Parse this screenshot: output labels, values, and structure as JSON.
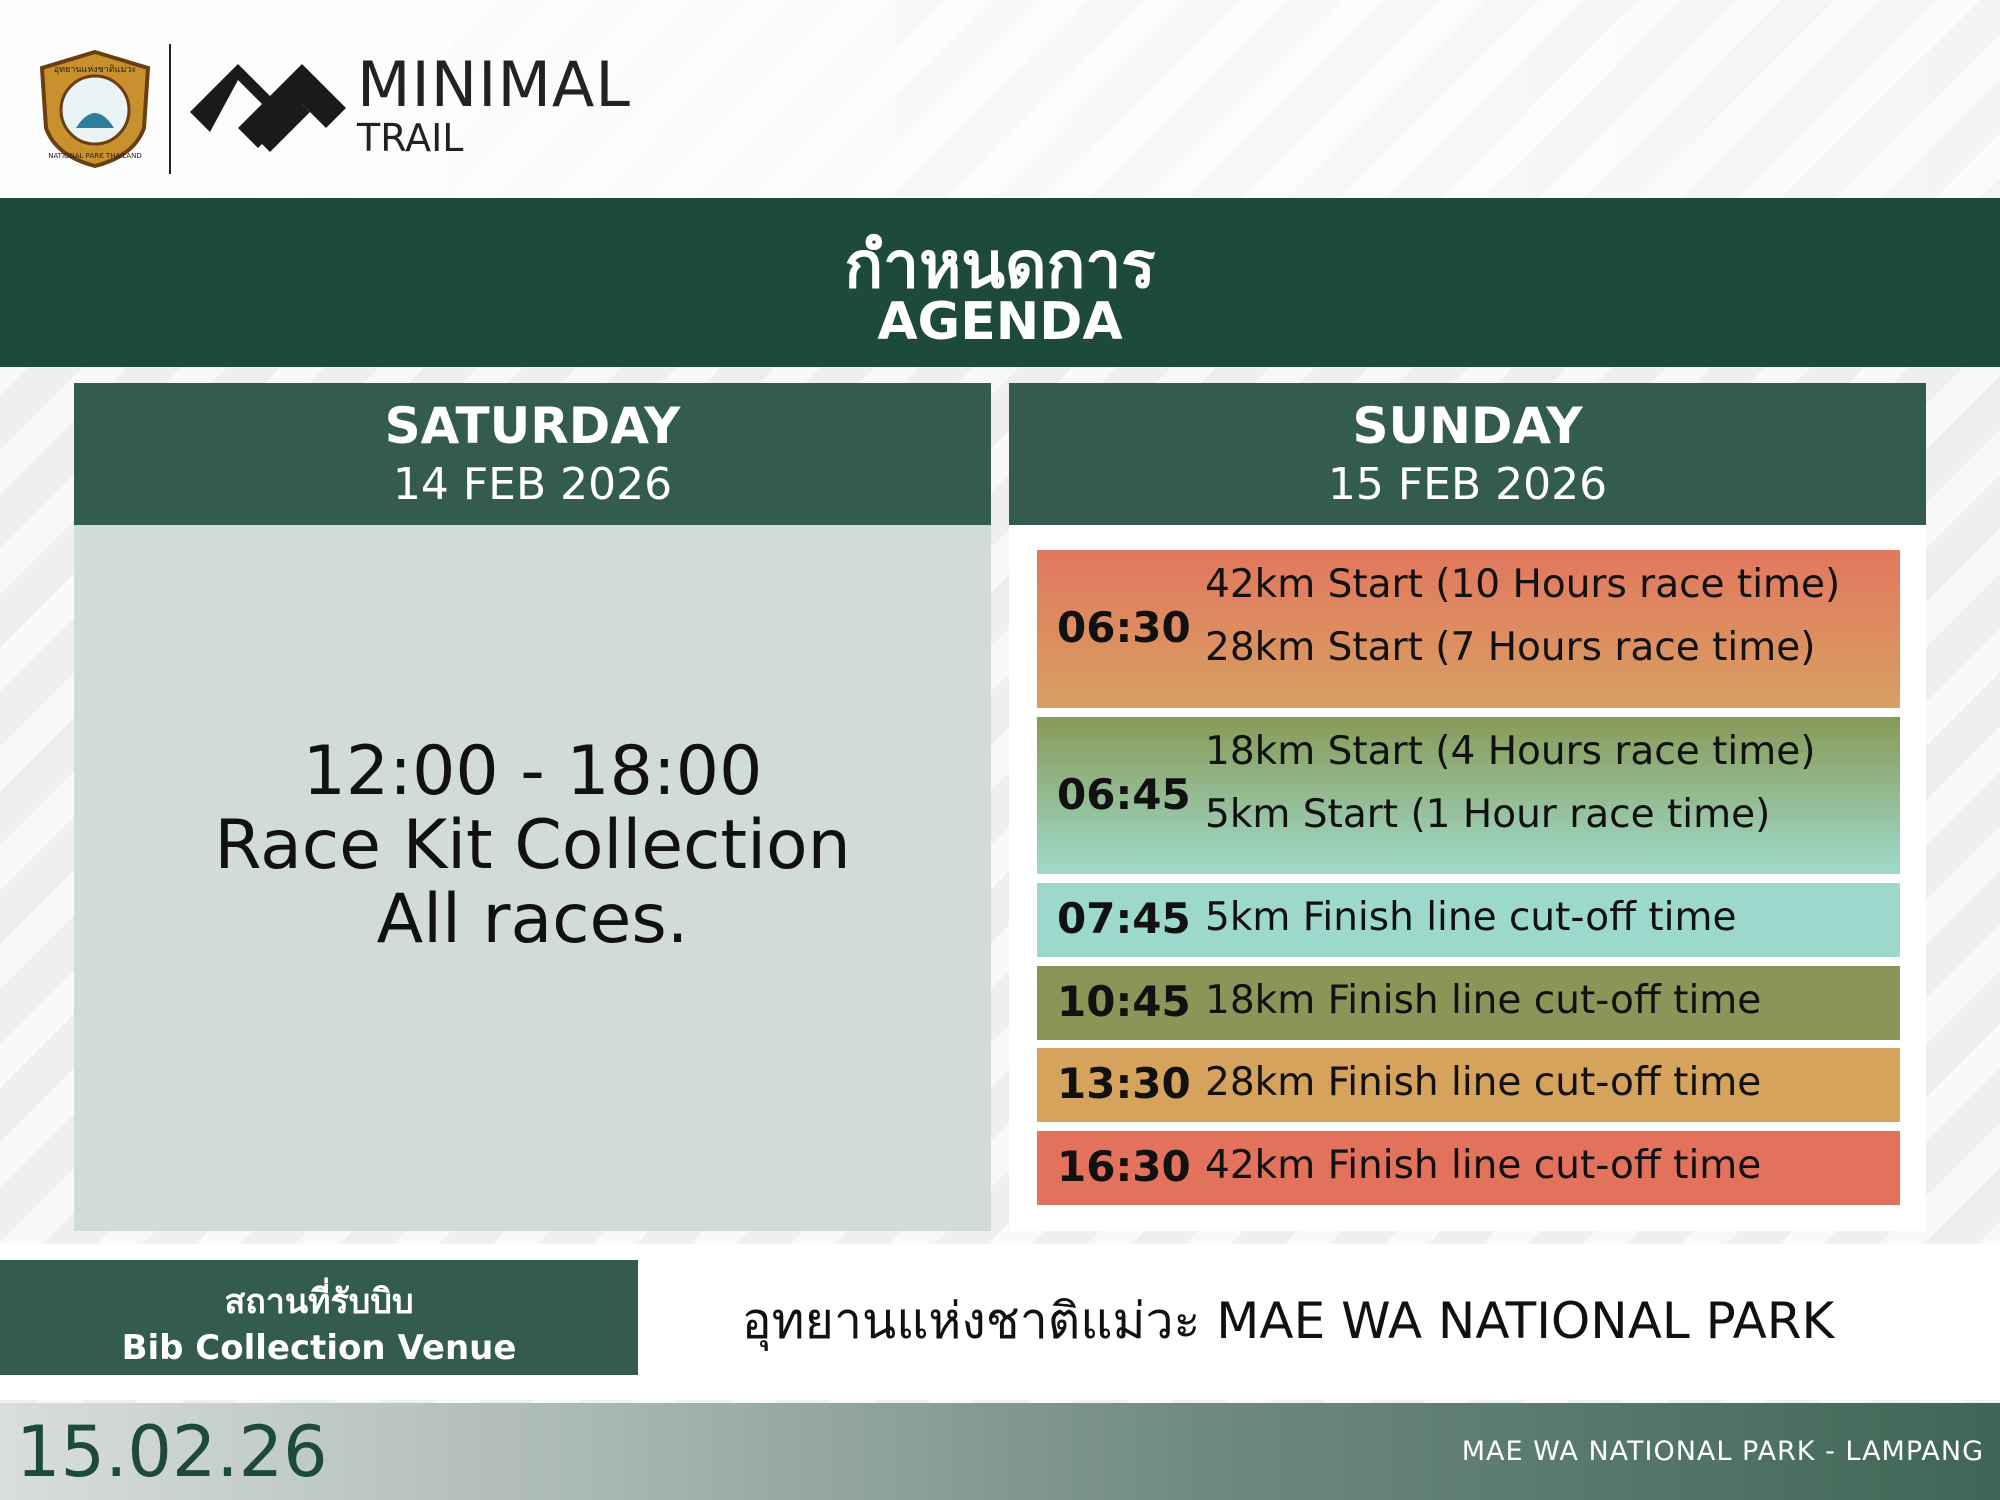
{
  "header": {
    "badge_top": "อุทยานแห่งชาติแม่วะ",
    "badge_bottom": "NATIONAL PARK THAILAND",
    "brand": "MINIMAL",
    "brand_sub": "TRAIL"
  },
  "banner": {
    "title_th": "กำหนดการ",
    "title_en": "AGENDA"
  },
  "days": [
    {
      "day": "SATURDAY",
      "date": "14 FEB 2026",
      "body": [
        "12:00 - 18:00",
        "Race Kit Collection",
        "All races."
      ]
    },
    {
      "day": "SUNDAY",
      "date": "15 FEB 2026",
      "items": [
        {
          "time": "06:30",
          "lines": [
            "42km Start (10 Hours race time)",
            "28km Start (7 Hours race time)"
          ]
        },
        {
          "time": "06:45",
          "lines": [
            "18km Start (4 Hours race time)",
            "5km Start (1 Hour race time)"
          ]
        },
        {
          "time": "07:45",
          "lines": [
            "5km Finish line cut-off time"
          ]
        },
        {
          "time": "10:45",
          "lines": [
            "18km Finish line cut-off time"
          ]
        },
        {
          "time": "13:30",
          "lines": [
            "28km Finish line cut-off time"
          ]
        },
        {
          "time": "16:30",
          "lines": [
            "42km Finish line cut-off time"
          ]
        }
      ]
    }
  ],
  "venue": {
    "label_th": "สถานที่รับบิบ",
    "label_en": "Bib Collection Venue",
    "name": "อุทยานแห่งชาติแม่วะ MAE WA NATIONAL PARK"
  },
  "footer": {
    "date": "15.02.26",
    "location": "MAE WA NATIONAL PARK - LAMPANG"
  }
}
